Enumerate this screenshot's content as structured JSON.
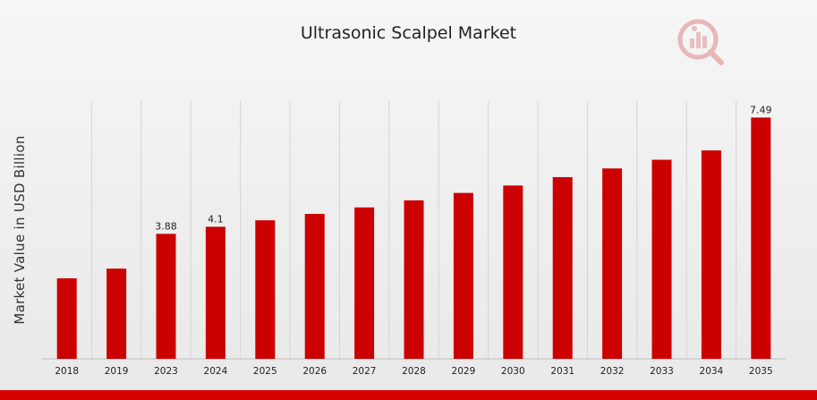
{
  "chart_data": {
    "type": "bar",
    "title": "Ultrasonic Scalpel Market",
    "ylabel": "Market Value in USD Billion",
    "xlabel": "",
    "categories": [
      "2018",
      "2019",
      "2023",
      "2024",
      "2025",
      "2026",
      "2027",
      "2028",
      "2029",
      "2030",
      "2031",
      "2032",
      "2033",
      "2034",
      "2035"
    ],
    "values": [
      2.5,
      2.8,
      3.88,
      4.1,
      4.3,
      4.5,
      4.7,
      4.92,
      5.15,
      5.38,
      5.64,
      5.91,
      6.18,
      6.47,
      7.49
    ],
    "data_labels": {
      "2023": "3.88",
      "2024": "4.1",
      "2035": "7.49"
    },
    "ylim": [
      0,
      8
    ],
    "grid": "vertical",
    "legend": "none",
    "colors": {
      "bar": "#cc0000",
      "grid": "#d4d4d4",
      "band": "#d50000"
    }
  },
  "logo": {
    "icon": "analytics-magnifier-icon"
  }
}
